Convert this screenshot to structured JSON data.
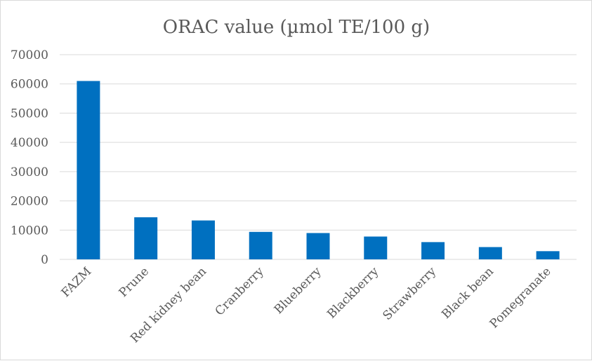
{
  "chart_data": {
    "type": "bar",
    "title": "ORAC value (µmol TE/100 g)",
    "xlabel": "",
    "ylabel": "",
    "categories": [
      "FAZM",
      "Prune",
      "Red kidney bean",
      "Cranberry",
      "Blueberry",
      "Blackberry",
      "Strawberry",
      "Black bean",
      "Pomegranate"
    ],
    "values": [
      61000,
      14400,
      13300,
      9400,
      9000,
      7800,
      5900,
      4200,
      2800
    ],
    "yticks": [
      "0",
      "10000",
      "20000",
      "30000",
      "40000",
      "50000",
      "60000",
      "70000"
    ],
    "ylim": [
      0,
      70000
    ],
    "grid": true,
    "legend": "none",
    "bar_color": "#0070c0"
  }
}
